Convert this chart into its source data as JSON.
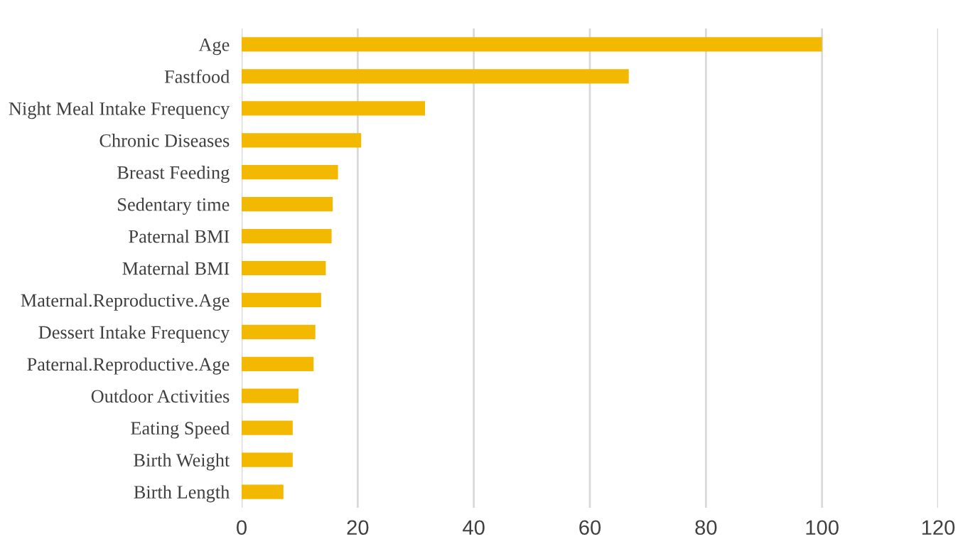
{
  "chart_data": {
    "type": "bar",
    "orientation": "horizontal",
    "categories": [
      "Age",
      "Fastfood",
      "Night Meal Intake Frequency",
      "Chronic Diseases",
      "Breast Feeding",
      "Sedentary time",
      "Paternal BMI",
      "Maternal BMI",
      "Maternal.Reproductive.Age",
      "Dessert Intake Frequency",
      "Paternal.Reproductive.Age",
      "Outdoor Activities",
      "Eating Speed",
      "Birth Weight",
      "Birth Length"
    ],
    "values": [
      100,
      66.7,
      31.6,
      20.6,
      16.6,
      15.7,
      15.5,
      14.5,
      13.7,
      12.7,
      12.4,
      9.8,
      8.8,
      8.8,
      7.2
    ],
    "color": "#f2b900",
    "xlim": [
      0,
      120
    ],
    "xticks": [
      0,
      20,
      40,
      60,
      80,
      100,
      120
    ],
    "grid": "x",
    "legend": false
  }
}
